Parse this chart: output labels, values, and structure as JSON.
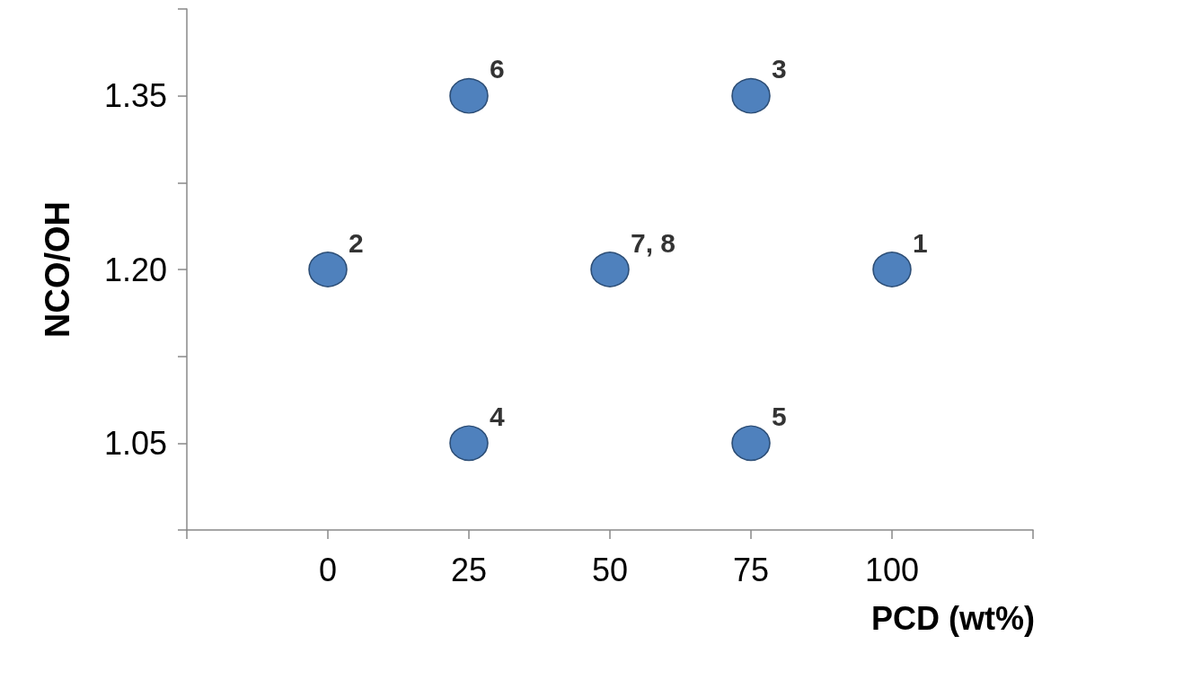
{
  "chart_data": {
    "type": "scatter",
    "xlabel": "PCD (wt%)",
    "ylabel": "NCO/OH",
    "x": [
      0,
      25,
      25,
      50,
      75,
      75,
      100
    ],
    "values": [
      1.2,
      1.35,
      1.05,
      1.2,
      1.35,
      1.05,
      1.2
    ],
    "annotations": [
      {
        "text": "2",
        "x": 0,
        "y": 1.2
      },
      {
        "text": "6",
        "x": 25,
        "y": 1.35
      },
      {
        "text": "4",
        "x": 25,
        "y": 1.05
      },
      {
        "text": "7, 8",
        "x": 50,
        "y": 1.2
      },
      {
        "text": "3",
        "x": 75,
        "y": 1.35
      },
      {
        "text": "5",
        "x": 75,
        "y": 1.05
      },
      {
        "text": "1",
        "x": 100,
        "y": 1.2
      }
    ],
    "color": "#4f81bd",
    "marker": "circle",
    "xlim": [
      -25,
      125
    ],
    "xticks": [
      {
        "value": -25,
        "label": null
      },
      0,
      25,
      50,
      75,
      100,
      {
        "value": 125,
        "label": null
      }
    ],
    "ylim": [
      0.975,
      1.425
    ],
    "yticks": [
      {
        "value": 0.975,
        "label": null
      },
      1.05,
      {
        "value": 1.125,
        "label": null
      },
      {
        "value": 1.2,
        "label": "1.20"
      },
      {
        "value": 1.275,
        "label": null
      },
      1.35,
      {
        "value": 1.425,
        "label": null
      }
    ],
    "grid": false
  }
}
